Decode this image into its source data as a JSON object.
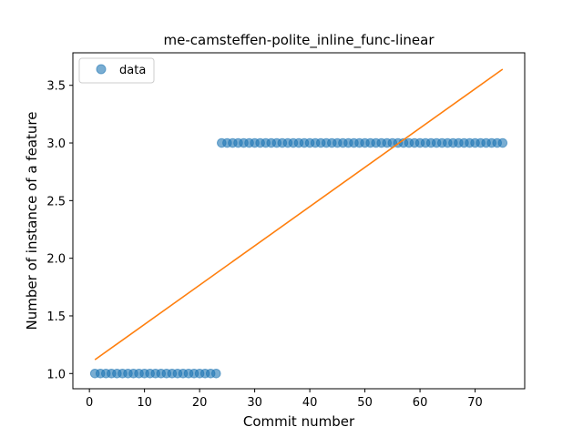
{
  "chart_data": {
    "type": "scatter",
    "title": "me-camsteffen-polite_inline_func-linear",
    "xlabel": "Commit number",
    "ylabel": "Number of instance of a feature",
    "xlim": [
      -3,
      79
    ],
    "ylim": [
      0.868,
      3.782
    ],
    "xticks": [
      0,
      10,
      20,
      30,
      40,
      50,
      60,
      70
    ],
    "yticks": [
      1.0,
      1.5,
      2.0,
      2.5,
      3.0,
      3.5
    ],
    "xtick_labels": [
      "0",
      "10",
      "20",
      "30",
      "40",
      "50",
      "60",
      "70"
    ],
    "ytick_labels": [
      "1.0",
      "1.5",
      "2.0",
      "2.5",
      "3.0",
      "3.5"
    ],
    "grid": false,
    "legend_position": "top-left",
    "series": [
      {
        "name": "data",
        "kind": "scatter",
        "color": "#1f77b4",
        "x": [
          1,
          2,
          3,
          4,
          5,
          6,
          7,
          8,
          9,
          10,
          11,
          12,
          13,
          14,
          15,
          16,
          17,
          18,
          19,
          20,
          21,
          22,
          23,
          24,
          25,
          26,
          27,
          28,
          29,
          30,
          31,
          32,
          33,
          34,
          35,
          36,
          37,
          38,
          39,
          40,
          41,
          42,
          43,
          44,
          45,
          46,
          47,
          48,
          49,
          50,
          51,
          52,
          53,
          54,
          55,
          56,
          57,
          58,
          59,
          60,
          61,
          62,
          63,
          64,
          65,
          66,
          67,
          68,
          69,
          70,
          71,
          72,
          73,
          74,
          75
        ],
        "y": [
          1,
          1,
          1,
          1,
          1,
          1,
          1,
          1,
          1,
          1,
          1,
          1,
          1,
          1,
          1,
          1,
          1,
          1,
          1,
          1,
          1,
          1,
          1,
          3,
          3,
          3,
          3,
          3,
          3,
          3,
          3,
          3,
          3,
          3,
          3,
          3,
          3,
          3,
          3,
          3,
          3,
          3,
          3,
          3,
          3,
          3,
          3,
          3,
          3,
          3,
          3,
          3,
          3,
          3,
          3,
          3,
          3,
          3,
          3,
          3,
          3,
          3,
          3,
          3,
          3,
          3,
          3,
          3,
          3,
          3,
          3,
          3,
          3,
          3,
          3
        ]
      },
      {
        "kind": "line",
        "color": "#ff7f0e",
        "x": [
          1,
          75
        ],
        "y": [
          1.12,
          3.64
        ]
      }
    ]
  }
}
